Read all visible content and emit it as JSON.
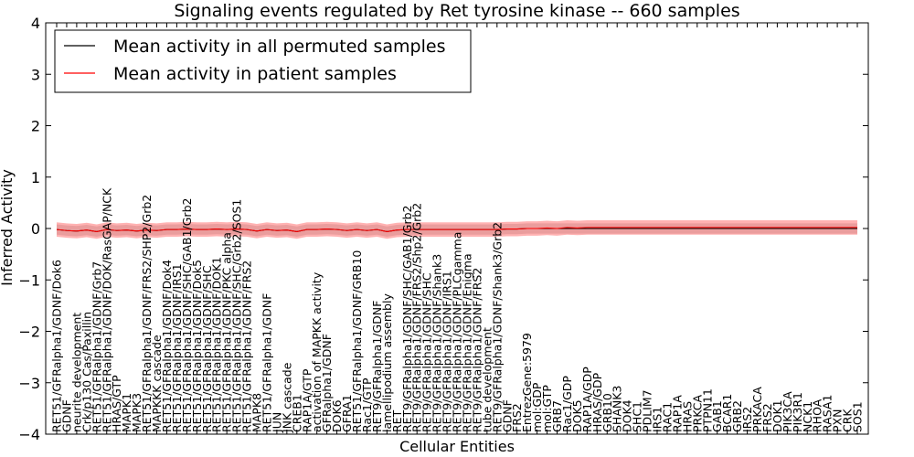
{
  "chart_data": {
    "type": "line",
    "title": "Signaling events regulated by Ret tyrosine kinase -- 660 samples",
    "xlabel": "Cellular Entities",
    "ylabel": "Inferred Activity",
    "ylim": [
      -4,
      4
    ],
    "yticks": [
      -4,
      -3,
      -2,
      -1,
      0,
      1,
      2,
      3,
      4
    ],
    "grid": false,
    "legend_position": "top-left",
    "categories": [
      "RET51/GFRalpha1/GDNF/Dok6",
      "GDNF",
      "neurite development",
      "Crk/p130 Cas/Paxillin",
      "RET51/GFRalpha1/GDNF/Grb7",
      "RET51/GFRalpha1/GDNF/DOK/RasGAP/NCK",
      "HRAS/GTP",
      "MAPK1",
      "MAPK3",
      "RET51/GFRalpha1/GDNF/FRS2/SHP2/Grb2",
      "MAPKKK cascade",
      "RET51/GFRalpha1/GDNF/Dok4",
      "RET51/GFRalpha1/GDNF/IRS1",
      "RET51/GFRalpha1/GDNF/SHC/GAB1/Grb2",
      "RET51/GFRalpha1/GDNF/Dok5",
      "RET51/GFRalpha1/GDNF/SHC",
      "RET51/GFRalpha1/GDNF/DOK1",
      "RET51/GFRalpha1/GDNF/PKC alpha",
      "RET51/GFRalpha1/GDNF/SHC/Grb2/SOS1",
      "RET51/GFRalpha1/GDNF/FRS2",
      "MAPK8",
      "RET51/GFRalpha1/GDNF",
      "JUN",
      "JNK cascade",
      "CREB1",
      "RAP1A/GTP",
      "activation of MAPKK activity",
      "GFRalpha1/GDNF",
      "DOK6",
      "GFRA1",
      "RET51/GFRalpha1/GDNF/GRB10",
      "Rac1/GTP",
      "RET9/GFRalpha1/GDNF",
      "lamellipodium assembly",
      "RET",
      "RET9/GFRalpha1/GDNF/SHC/GAB1/Grb2",
      "RET9/GFRalpha1/GDNF/FRS2/Shp2/Grb2",
      "RET9/GFRalpha1/GDNF/SHC",
      "RET9/GFRalpha1/GDNF/Shank3",
      "RET9/GFRalpha1/GDNF/IRS1",
      "RET9/GFRalpha1/GDNF/PLCgamma",
      "RET9/GFRalpha1/GDNF/Enigma",
      "RET9/GFRalpha1/GDNF/FRS2",
      "tube development",
      "RET9/GFRalpha1/GDNF/Shank3/Grb2",
      "GDNF",
      "FRS2",
      "EntrezGene:5979",
      "mol:GDP",
      "mol:GTP",
      "GRB7",
      "Rac1/GDP",
      "DOK5",
      "RAP1A/GDP",
      "HRAS/GDP",
      "GRB10",
      "SHANK3",
      "DOK4",
      "SHC1",
      "PDLIM7",
      "IRS1",
      "RAC1",
      "RAP1A",
      "HRAS",
      "PRKCA",
      "PTPN11",
      "GAB1",
      "BCAR1",
      "GRB2",
      "IRS2",
      "PRKACA",
      "FRS2",
      "DOK1",
      "PIK3CA",
      "PIK3R1",
      "NCK1",
      "RHOA",
      "RASA1",
      "PXN",
      "CRK",
      "SOS1"
    ],
    "series": [
      {
        "name": "Mean activity in all permuted samples",
        "color": "#000000",
        "values": [
          -0.02,
          -0.04,
          -0.05,
          -0.03,
          -0.06,
          -0.02,
          -0.04,
          -0.03,
          -0.05,
          -0.03,
          -0.04,
          -0.02,
          -0.02,
          -0.01,
          -0.02,
          -0.02,
          -0.01,
          -0.02,
          -0.01,
          -0.02,
          -0.05,
          -0.02,
          -0.04,
          -0.03,
          -0.06,
          -0.02,
          -0.02,
          -0.01,
          -0.02,
          -0.04,
          -0.02,
          -0.04,
          -0.02,
          -0.06,
          -0.03,
          -0.02,
          -0.02,
          -0.02,
          -0.02,
          -0.02,
          -0.02,
          -0.02,
          -0.02,
          -0.02,
          -0.02,
          -0.01,
          -0.01,
          0,
          0,
          0,
          0,
          0,
          0,
          0,
          0,
          0,
          0,
          0,
          0,
          0,
          0,
          0,
          0,
          0,
          0,
          0,
          0,
          0,
          0,
          0,
          0,
          0,
          0,
          0,
          0,
          0,
          0,
          0,
          0,
          0,
          0
        ],
        "band": 0.1
      },
      {
        "name": "Mean activity in patient samples",
        "color": "#ff0000",
        "values": [
          -0.02,
          -0.04,
          -0.05,
          -0.03,
          -0.06,
          -0.02,
          -0.04,
          -0.03,
          -0.05,
          -0.03,
          -0.04,
          -0.02,
          -0.02,
          -0.01,
          -0.02,
          -0.02,
          -0.01,
          -0.02,
          -0.01,
          -0.02,
          -0.05,
          -0.02,
          -0.04,
          -0.03,
          -0.06,
          -0.02,
          -0.02,
          -0.01,
          -0.02,
          -0.04,
          -0.02,
          -0.04,
          -0.02,
          -0.06,
          -0.03,
          -0.02,
          -0.02,
          -0.02,
          -0.02,
          -0.02,
          -0.02,
          -0.02,
          -0.02,
          -0.02,
          -0.02,
          -0.01,
          -0.01,
          0,
          0,
          0.01,
          0,
          0.02,
          0.01,
          0.02,
          0.02,
          0.02,
          0.02,
          0.02,
          0.02,
          0.02,
          0.02,
          0.02,
          0.02,
          0.02,
          0.02,
          0.02,
          0.02,
          0.02,
          0.02,
          0.02,
          0.02,
          0.02,
          0.02,
          0.02,
          0.02,
          0.02,
          0.02,
          0.02,
          0.02,
          0.02,
          0.02
        ],
        "band": 0.14
      }
    ]
  }
}
